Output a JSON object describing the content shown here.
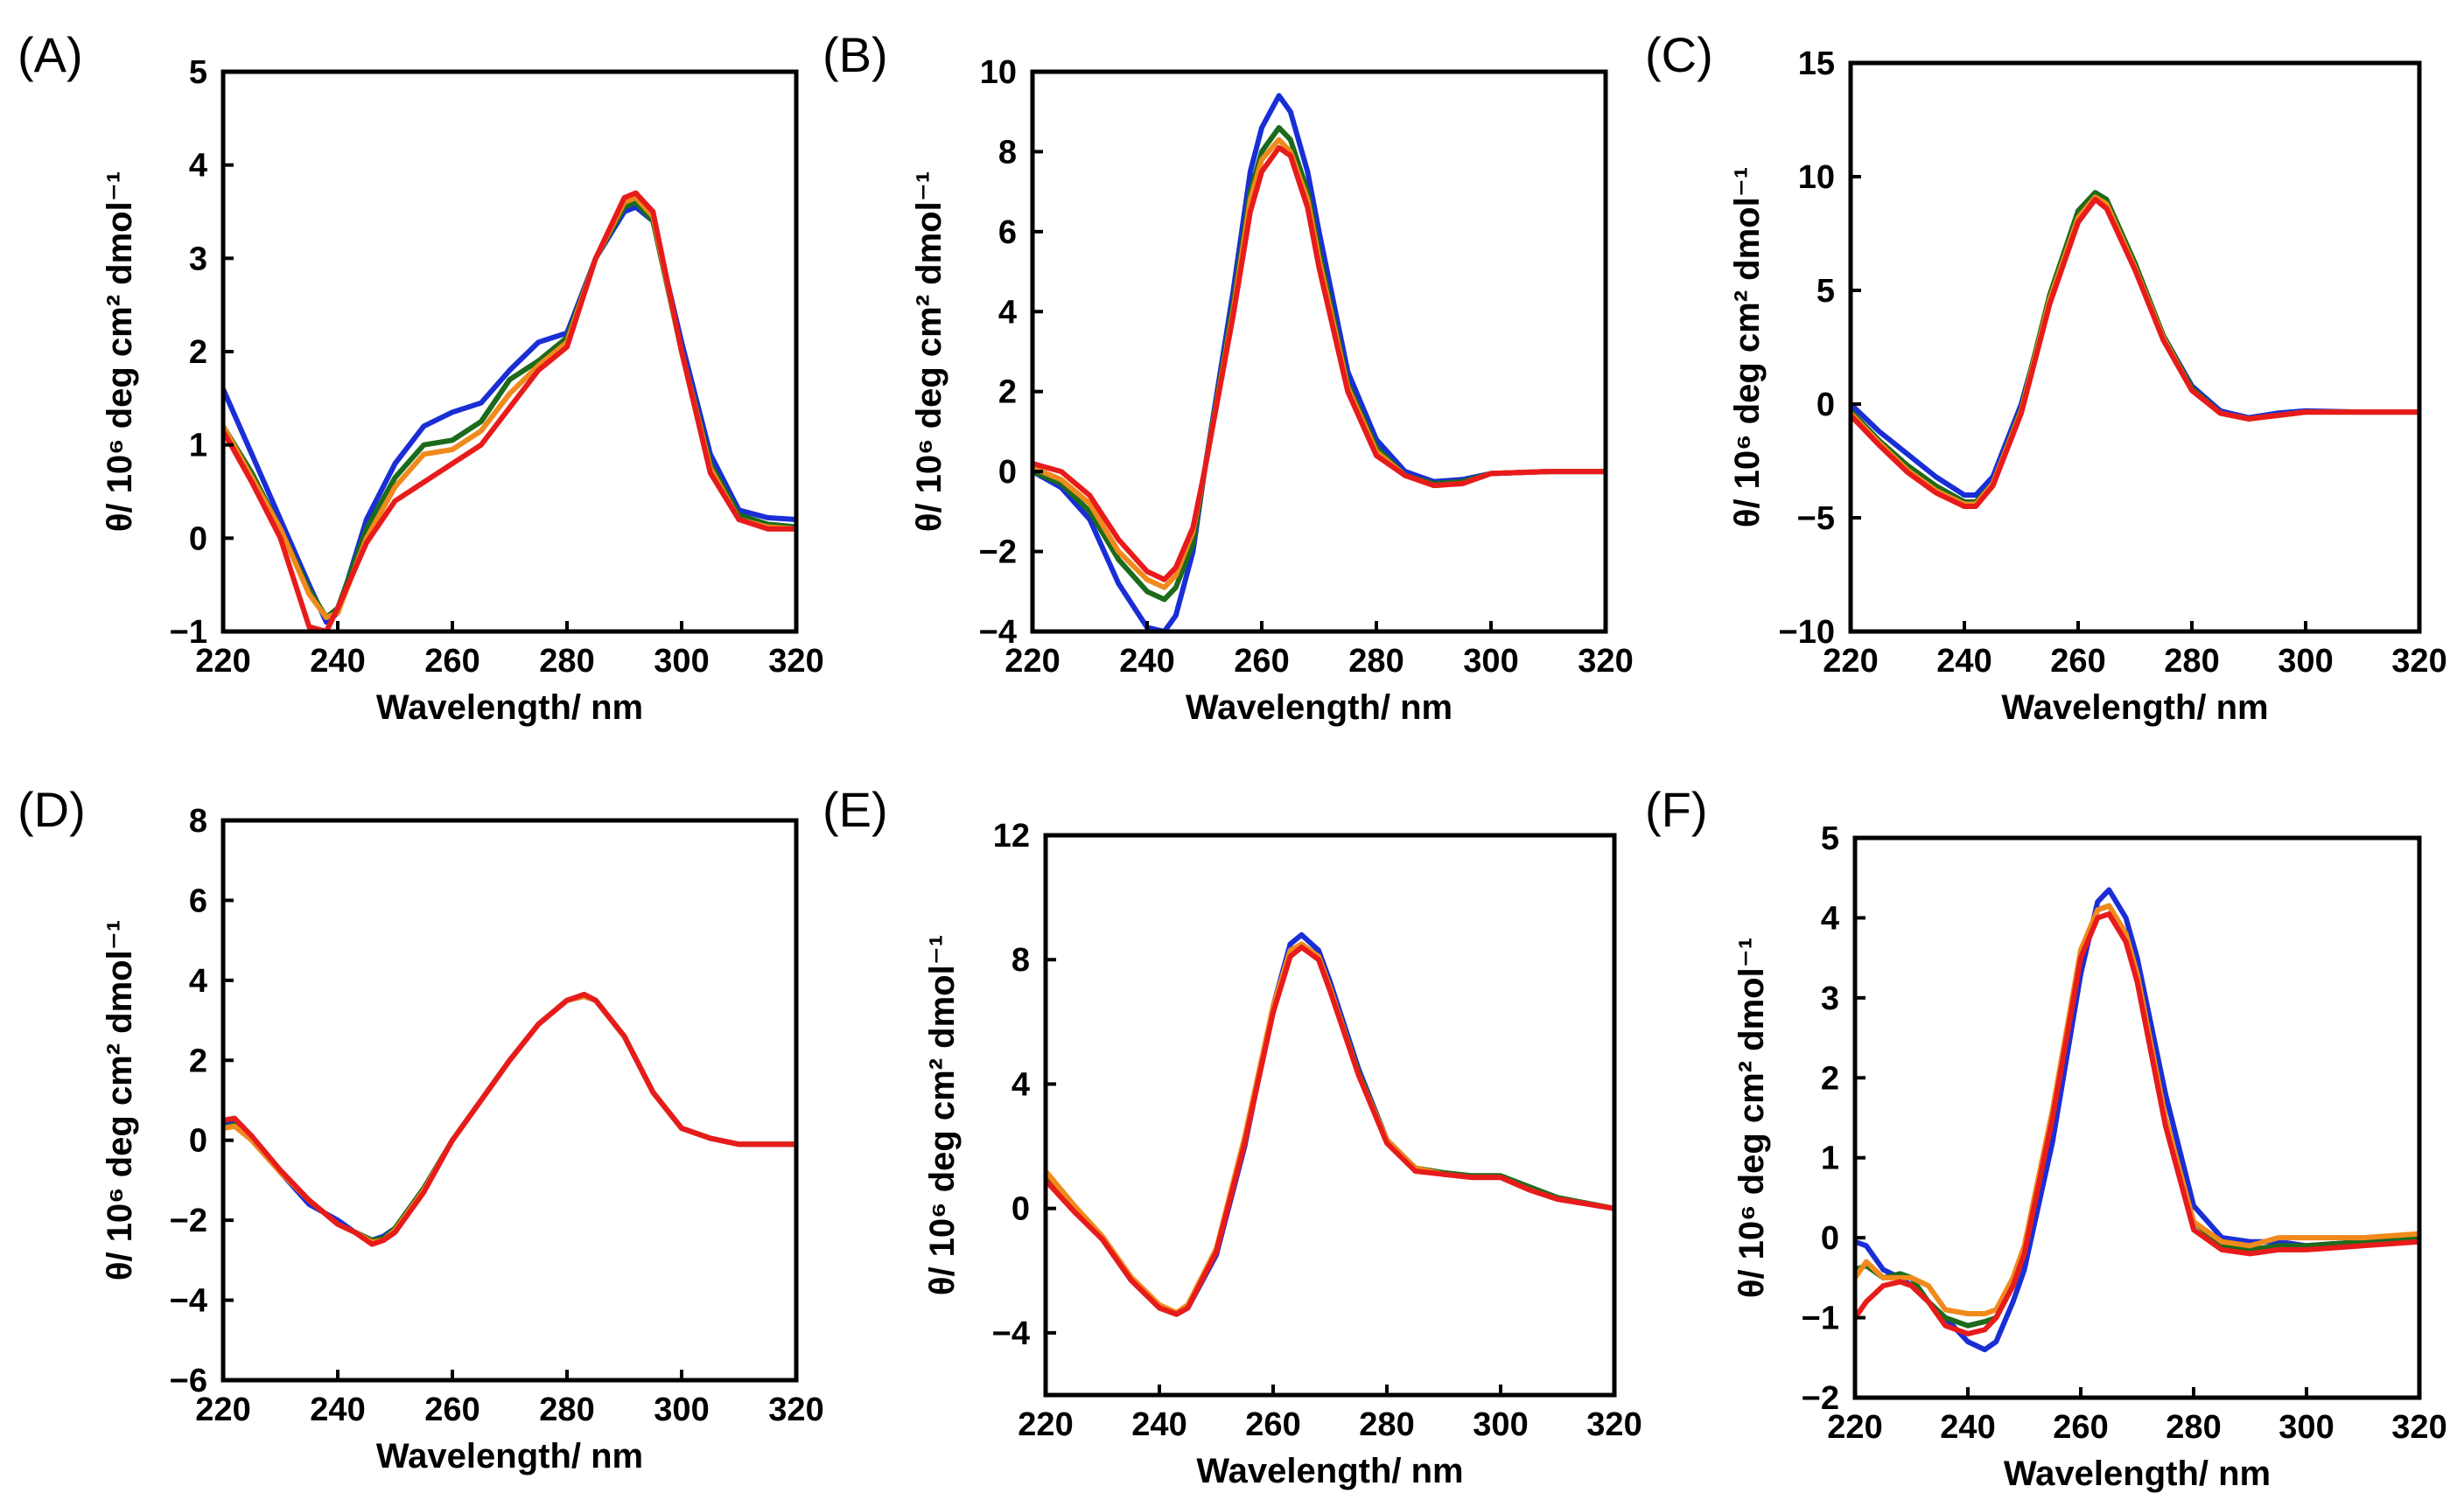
{
  "chart_data": [
    {
      "panel": "(A)",
      "type": "line",
      "xlabel": "Wavelength/ nm",
      "ylabel": "θ/ 10⁶ deg cm² dmol⁻¹",
      "xlim": [
        220,
        320
      ],
      "ylim": [
        -1,
        5
      ],
      "xticks": [
        "220",
        "240",
        "260",
        "280",
        "300",
        "320"
      ],
      "yticks": [
        "−1",
        "0",
        "1",
        "2",
        "3",
        "4",
        "5"
      ],
      "x": [
        220,
        225,
        230,
        235,
        238,
        240,
        245,
        250,
        255,
        260,
        265,
        270,
        275,
        280,
        285,
        290,
        292,
        295,
        300,
        305,
        310,
        315,
        320
      ],
      "series": [
        {
          "name": "blue",
          "color": "#1a2ed6",
          "values": [
            1.6,
            0.9,
            0.2,
            -0.5,
            -0.9,
            -0.8,
            0.2,
            0.8,
            1.2,
            1.35,
            1.45,
            1.8,
            2.1,
            2.2,
            3.0,
            3.5,
            3.55,
            3.4,
            2.1,
            0.9,
            0.3,
            0.22,
            0.2
          ]
        },
        {
          "name": "green",
          "color": "#1c6b1c",
          "values": [
            1.2,
            0.7,
            0.1,
            -0.55,
            -0.85,
            -0.75,
            0.1,
            0.65,
            1.0,
            1.05,
            1.25,
            1.7,
            1.9,
            2.15,
            3.0,
            3.55,
            3.6,
            3.4,
            2.0,
            0.8,
            0.25,
            0.15,
            0.12
          ]
        },
        {
          "name": "orange",
          "color": "#f08a1c",
          "values": [
            1.2,
            0.65,
            0.1,
            -0.6,
            -0.85,
            -0.8,
            0.0,
            0.55,
            0.9,
            0.95,
            1.15,
            1.55,
            1.85,
            2.1,
            3.0,
            3.6,
            3.65,
            3.45,
            2.0,
            0.75,
            0.2,
            0.12,
            0.1
          ]
        },
        {
          "name": "red",
          "color": "#e81b1b",
          "values": [
            1.15,
            0.6,
            0.0,
            -0.95,
            -1.0,
            -0.75,
            -0.05,
            0.4,
            0.6,
            0.8,
            1.0,
            1.4,
            1.8,
            2.05,
            3.0,
            3.65,
            3.7,
            3.5,
            2.0,
            0.7,
            0.2,
            0.1,
            0.1
          ]
        }
      ]
    },
    {
      "panel": "(B)",
      "type": "line",
      "xlabel": "Wavelength/ nm",
      "ylabel": "θ/ 10⁶ deg cm² dmol⁻¹",
      "xlim": [
        220,
        320
      ],
      "ylim": [
        -4,
        10
      ],
      "xticks": [
        "220",
        "240",
        "260",
        "280",
        "300",
        "320"
      ],
      "yticks": [
        "−4",
        "−2",
        "0",
        "2",
        "4",
        "6",
        "8",
        "10"
      ],
      "x": [
        220,
        225,
        230,
        235,
        240,
        243,
        245,
        248,
        250,
        255,
        258,
        260,
        263,
        265,
        268,
        270,
        275,
        280,
        285,
        290,
        295,
        300,
        310,
        320
      ],
      "series": [
        {
          "name": "blue",
          "color": "#1a2ed6",
          "values": [
            0.0,
            -0.4,
            -1.2,
            -2.8,
            -3.9,
            -4.0,
            -3.6,
            -2.0,
            0.0,
            4.5,
            7.5,
            8.6,
            9.4,
            9.0,
            7.5,
            6.0,
            2.5,
            0.8,
            0.0,
            -0.25,
            -0.2,
            -0.05,
            0.0,
            0.0
          ]
        },
        {
          "name": "green",
          "color": "#1c6b1c",
          "values": [
            0.0,
            -0.3,
            -1.0,
            -2.2,
            -3.0,
            -3.2,
            -2.9,
            -1.8,
            0.0,
            4.2,
            7.0,
            8.0,
            8.6,
            8.3,
            7.0,
            5.5,
            2.2,
            0.6,
            -0.1,
            -0.3,
            -0.25,
            -0.05,
            0.0,
            0.0
          ]
        },
        {
          "name": "orange",
          "color": "#f08a1c",
          "values": [
            0.1,
            -0.2,
            -0.8,
            -2.0,
            -2.7,
            -2.9,
            -2.6,
            -1.5,
            0.0,
            4.0,
            6.8,
            7.8,
            8.3,
            8.0,
            6.8,
            5.3,
            2.1,
            0.5,
            -0.1,
            -0.35,
            -0.3,
            -0.05,
            0.0,
            0.0
          ]
        },
        {
          "name": "red",
          "color": "#e81b1b",
          "values": [
            0.2,
            0.0,
            -0.6,
            -1.7,
            -2.5,
            -2.7,
            -2.4,
            -1.4,
            0.0,
            3.9,
            6.5,
            7.5,
            8.1,
            7.9,
            6.6,
            5.1,
            2.0,
            0.4,
            -0.1,
            -0.35,
            -0.3,
            -0.05,
            0.0,
            0.0
          ]
        }
      ]
    },
    {
      "panel": "(C)",
      "type": "line",
      "xlabel": "Wavelength/ nm",
      "ylabel": "θ/ 10⁶ deg cm² dmol⁻¹",
      "xlim": [
        220,
        320
      ],
      "ylim": [
        -10,
        15
      ],
      "xticks": [
        "220",
        "240",
        "260",
        "280",
        "300",
        "320"
      ],
      "yticks": [
        "−10",
        "−5",
        "0",
        "5",
        "10",
        "15"
      ],
      "x": [
        220,
        225,
        230,
        235,
        240,
        242,
        245,
        250,
        255,
        260,
        263,
        265,
        270,
        275,
        280,
        285,
        290,
        295,
        300,
        310,
        320
      ],
      "series": [
        {
          "name": "blue",
          "color": "#1a2ed6",
          "values": [
            0.0,
            -1.2,
            -2.2,
            -3.2,
            -4.0,
            -4.0,
            -3.2,
            0.0,
            4.5,
            8.0,
            9.0,
            8.7,
            6.0,
            3.0,
            0.8,
            -0.3,
            -0.6,
            -0.4,
            -0.3,
            -0.35,
            -0.35
          ]
        },
        {
          "name": "green",
          "color": "#1c6b1c",
          "values": [
            -0.3,
            -1.6,
            -2.7,
            -3.6,
            -4.3,
            -4.3,
            -3.5,
            -0.2,
            4.8,
            8.5,
            9.3,
            9.0,
            6.2,
            3.0,
            0.7,
            -0.4,
            -0.65,
            -0.5,
            -0.35,
            -0.35,
            -0.35
          ]
        },
        {
          "name": "orange",
          "color": "#f08a1c",
          "values": [
            -0.4,
            -1.7,
            -2.9,
            -3.8,
            -4.4,
            -4.4,
            -3.5,
            -0.3,
            4.6,
            8.2,
            9.1,
            8.8,
            6.0,
            2.9,
            0.6,
            -0.4,
            -0.65,
            -0.5,
            -0.35,
            -0.35,
            -0.35
          ]
        },
        {
          "name": "red",
          "color": "#e81b1b",
          "values": [
            -0.5,
            -1.8,
            -3.0,
            -3.9,
            -4.5,
            -4.5,
            -3.6,
            -0.4,
            4.4,
            8.0,
            9.0,
            8.6,
            5.9,
            2.8,
            0.6,
            -0.4,
            -0.65,
            -0.5,
            -0.35,
            -0.35,
            -0.35
          ]
        }
      ]
    },
    {
      "panel": "(D)",
      "type": "line",
      "xlabel": "Wavelength/ nm",
      "ylabel": "θ/ 10⁶ deg cm² dmol⁻¹",
      "xlim": [
        220,
        320
      ],
      "ylim": [
        -6,
        8
      ],
      "xticks": [
        "220",
        "240",
        "260",
        "280",
        "300",
        "320"
      ],
      "yticks": [
        "−6",
        "−4",
        "−2",
        "0",
        "2",
        "4",
        "6",
        "8"
      ],
      "x": [
        220,
        222,
        225,
        230,
        235,
        240,
        243,
        246,
        248,
        250,
        255,
        260,
        265,
        270,
        275,
        280,
        283,
        285,
        290,
        295,
        300,
        305,
        310,
        320
      ],
      "series": [
        {
          "name": "blue",
          "color": "#1a2ed6",
          "values": [
            0.4,
            0.5,
            0.1,
            -0.8,
            -1.6,
            -2.0,
            -2.3,
            -2.5,
            -2.4,
            -2.2,
            -1.2,
            0.0,
            1.0,
            2.0,
            2.9,
            3.5,
            3.6,
            3.5,
            2.6,
            1.2,
            0.3,
            0.05,
            -0.1,
            -0.1
          ]
        },
        {
          "name": "green",
          "color": "#1c6b1c",
          "values": [
            0.3,
            0.4,
            0.0,
            -0.8,
            -1.5,
            -2.1,
            -2.3,
            -2.5,
            -2.45,
            -2.2,
            -1.2,
            0.0,
            1.0,
            2.0,
            2.9,
            3.5,
            3.6,
            3.5,
            2.6,
            1.2,
            0.3,
            0.05,
            -0.1,
            -0.1
          ]
        },
        {
          "name": "orange",
          "color": "#f08a1c",
          "values": [
            0.3,
            0.35,
            0.0,
            -0.8,
            -1.5,
            -2.1,
            -2.3,
            -2.55,
            -2.5,
            -2.25,
            -1.25,
            0.0,
            1.0,
            2.0,
            2.9,
            3.5,
            3.6,
            3.5,
            2.6,
            1.2,
            0.3,
            0.05,
            -0.1,
            -0.1
          ]
        },
        {
          "name": "red",
          "color": "#e81b1b",
          "values": [
            0.5,
            0.55,
            0.1,
            -0.75,
            -1.5,
            -2.1,
            -2.3,
            -2.6,
            -2.5,
            -2.3,
            -1.3,
            0.0,
            1.0,
            2.0,
            2.9,
            3.5,
            3.65,
            3.5,
            2.6,
            1.2,
            0.3,
            0.05,
            -0.1,
            -0.1
          ]
        }
      ]
    },
    {
      "panel": "(E)",
      "type": "line",
      "xlabel": "Wavelength/ nm",
      "ylabel": "θ/ 10⁶ deg cm² dmol⁻¹",
      "xlim": [
        220,
        320
      ],
      "ylim": [
        -6,
        12
      ],
      "xticks": [
        "220",
        "240",
        "260",
        "280",
        "300",
        "320"
      ],
      "yticks": [
        "−4",
        "0",
        "4",
        "8",
        "12"
      ],
      "x": [
        220,
        225,
        230,
        235,
        240,
        243,
        245,
        250,
        255,
        260,
        263,
        265,
        268,
        270,
        275,
        280,
        285,
        290,
        295,
        300,
        305,
        310,
        320
      ],
      "series": [
        {
          "name": "blue",
          "color": "#1a2ed6",
          "values": [
            1.0,
            0.0,
            -1.0,
            -2.3,
            -3.2,
            -3.4,
            -3.2,
            -1.5,
            2.0,
            6.5,
            8.5,
            8.8,
            8.3,
            7.3,
            4.5,
            2.2,
            1.3,
            1.1,
            1.0,
            1.0,
            0.6,
            0.3,
            0.0
          ]
        },
        {
          "name": "green",
          "color": "#1c6b1c",
          "values": [
            1.1,
            0.0,
            -1.0,
            -2.3,
            -3.2,
            -3.4,
            -3.2,
            -1.4,
            2.2,
            6.4,
            8.2,
            8.5,
            8.1,
            7.1,
            4.4,
            2.2,
            1.3,
            1.15,
            1.05,
            1.05,
            0.7,
            0.35,
            0.0
          ]
        },
        {
          "name": "orange",
          "color": "#f08a1c",
          "values": [
            1.2,
            0.1,
            -0.9,
            -2.2,
            -3.1,
            -3.35,
            -3.1,
            -1.3,
            2.3,
            6.5,
            8.3,
            8.5,
            8.1,
            7.1,
            4.3,
            2.2,
            1.3,
            1.1,
            1.0,
            1.0,
            0.6,
            0.3,
            0.0
          ]
        },
        {
          "name": "red",
          "color": "#e81b1b",
          "values": [
            0.9,
            -0.1,
            -1.0,
            -2.3,
            -3.2,
            -3.4,
            -3.2,
            -1.4,
            2.1,
            6.3,
            8.1,
            8.4,
            8.0,
            7.0,
            4.3,
            2.1,
            1.2,
            1.1,
            1.0,
            1.0,
            0.6,
            0.3,
            0.0
          ]
        }
      ]
    },
    {
      "panel": "(F)",
      "type": "line",
      "xlabel": "Wavelength/ nm",
      "ylabel": "θ/ 10⁶ deg cm² dmol⁻¹",
      "xlim": [
        220,
        320
      ],
      "ylim": [
        -2,
        5
      ],
      "xticks": [
        "220",
        "240",
        "260",
        "280",
        "300",
        "320"
      ],
      "yticks": [
        "−2",
        "−1",
        "0",
        "1",
        "2",
        "3",
        "4",
        "5"
      ],
      "x": [
        220,
        222,
        225,
        228,
        230,
        233,
        236,
        240,
        243,
        245,
        248,
        250,
        255,
        260,
        263,
        265,
        268,
        270,
        275,
        280,
        285,
        290,
        295,
        300,
        310,
        320
      ],
      "series": [
        {
          "name": "blue",
          "color": "#1a2ed6",
          "values": [
            -0.05,
            -0.1,
            -0.4,
            -0.5,
            -0.6,
            -0.8,
            -1.0,
            -1.3,
            -1.4,
            -1.3,
            -0.8,
            -0.4,
            1.2,
            3.3,
            4.2,
            4.35,
            4.0,
            3.5,
            1.8,
            0.4,
            0.0,
            -0.05,
            -0.05,
            -0.1,
            -0.05,
            0.0
          ]
        },
        {
          "name": "green",
          "color": "#1c6b1c",
          "values": [
            -0.4,
            -0.35,
            -0.5,
            -0.45,
            -0.5,
            -0.8,
            -1.0,
            -1.1,
            -1.05,
            -1.0,
            -0.6,
            -0.2,
            1.5,
            3.5,
            4.1,
            4.15,
            3.8,
            3.3,
            1.5,
            0.2,
            -0.1,
            -0.15,
            -0.1,
            -0.1,
            -0.05,
            0.0
          ]
        },
        {
          "name": "orange",
          "color": "#f08a1c",
          "values": [
            -0.5,
            -0.3,
            -0.5,
            -0.5,
            -0.5,
            -0.6,
            -0.9,
            -0.95,
            -0.95,
            -0.9,
            -0.5,
            -0.1,
            1.6,
            3.6,
            4.1,
            4.15,
            3.8,
            3.3,
            1.5,
            0.2,
            -0.05,
            -0.1,
            0.0,
            0.0,
            0.0,
            0.05
          ]
        },
        {
          "name": "red",
          "color": "#e81b1b",
          "values": [
            -1.0,
            -0.8,
            -0.6,
            -0.55,
            -0.6,
            -0.8,
            -1.1,
            -1.2,
            -1.15,
            -1.0,
            -0.6,
            -0.2,
            1.5,
            3.5,
            4.0,
            4.05,
            3.7,
            3.2,
            1.4,
            0.1,
            -0.15,
            -0.2,
            -0.15,
            -0.15,
            -0.1,
            -0.05
          ]
        }
      ]
    }
  ]
}
